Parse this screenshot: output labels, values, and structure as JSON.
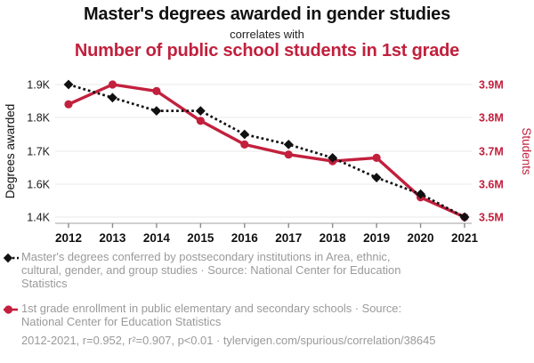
{
  "header": {
    "title": "Master's degrees awarded in gender studies",
    "connector": "correlates with",
    "title_secondary": "Number of public school students in 1st grade"
  },
  "colors": {
    "black_series": "#111111",
    "red_series": "#c2203d",
    "gridline": "#e8e8e8",
    "axis_line": "#b3b3b3",
    "caption_gray": "#9a9a9a"
  },
  "chart_data": {
    "type": "line",
    "x": [
      2012,
      2013,
      2014,
      2015,
      2016,
      2017,
      2018,
      2019,
      2020,
      2021
    ],
    "x_tick_labels": [
      "2012",
      "2013",
      "2014",
      "2015",
      "2016",
      "2017",
      "2018",
      "2019",
      "2020",
      "2021"
    ],
    "left_axis": {
      "label": "Degrees awarded",
      "tick_labels": [
        "1.4K",
        "1.6K",
        "1.7K",
        "1.8K",
        "1.9K"
      ],
      "tick_values": [
        1.4,
        1.6,
        1.7,
        1.8,
        1.9
      ],
      "unit": "thousand degrees"
    },
    "right_axis": {
      "label": "Students",
      "tick_labels": [
        "3.5M",
        "3.6M",
        "3.7M",
        "3.8M",
        "3.9M"
      ],
      "tick_values": [
        3.5,
        3.6,
        3.7,
        3.8,
        3.9
      ],
      "unit": "million students"
    },
    "series": [
      {
        "name": "Master's degrees conferred by postsecondary institutions in Area, ethnic, cultural, gender, and group studies",
        "axis": "left",
        "color": "#111111",
        "marker": "diamond",
        "line_style": "dotted",
        "values": [
          1.9,
          1.86,
          1.82,
          1.82,
          1.75,
          1.72,
          1.68,
          1.62,
          1.54,
          1.4
        ]
      },
      {
        "name": "1st grade enrollment in public elementary and secondary schools",
        "axis": "right",
        "color": "#c2203d",
        "marker": "circle",
        "line_style": "solid",
        "values": [
          3.84,
          3.9,
          3.88,
          3.79,
          3.72,
          3.69,
          3.67,
          3.68,
          3.56,
          3.5
        ]
      }
    ],
    "grid": true,
    "legend_position": "bottom"
  },
  "legend": {
    "items": [
      {
        "marker": "black-diamond-dotted-line",
        "text": "Master's degrees conferred by postsecondary institutions in Area, ethnic,\ncultural, gender, and group studies · Source: National Center for Education\nStatistics"
      },
      {
        "marker": "red-circle-solid-line",
        "text": "1st grade enrollment in public elementary and secondary schools · Source:\nNational Center for Education Statistics"
      }
    ]
  },
  "footer": {
    "text": "2012-2021, r=0.952, r²=0.907, p<0.01 · tylervigen.com/spurious/correlation/38645"
  }
}
